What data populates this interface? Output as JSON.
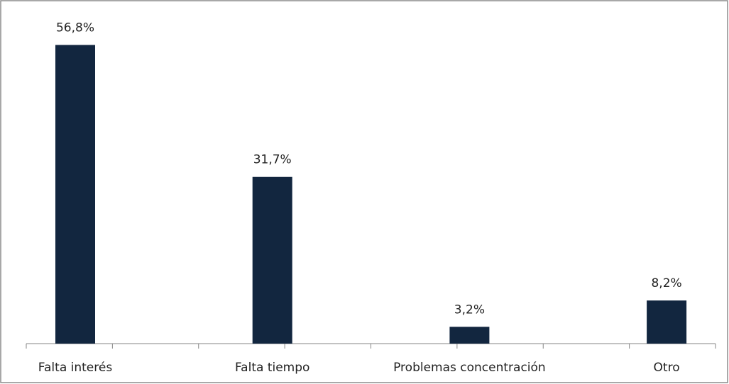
{
  "chart_data": {
    "type": "bar",
    "categories": [
      "Falta interés",
      "Falta tiempo",
      "Problemas concentración",
      "Otro"
    ],
    "values": [
      56.8,
      31.7,
      3.2,
      8.2
    ],
    "value_labels": [
      "56,8%",
      "31,7%",
      "3,2%",
      "8,2%"
    ],
    "color": "#12263f",
    "ylim": [
      0,
      64
    ]
  }
}
